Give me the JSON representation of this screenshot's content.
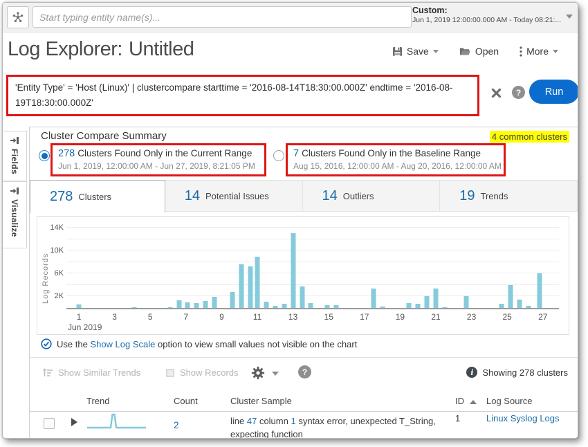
{
  "topbar": {
    "entity_placeholder": "Start typing entity name(s)...",
    "time_range_label": "Custom:",
    "time_range_value": "Jun 1, 2019 12:00:00.000 AM - Today 08:21:..."
  },
  "header": {
    "title_prefix": "Log Explorer:",
    "title_name": "Untitled",
    "save_label": "Save",
    "open_label": "Open",
    "more_label": "More"
  },
  "query": {
    "text": "'Entity Type' = 'Host (Linux)' | clustercompare starttime = '2016-08-14T18:30:00.000Z' endtime = '2016-08-19T18:30:00.000Z'",
    "run_label": "Run"
  },
  "sidebar": {
    "fields_label": "Fields",
    "visualize_label": "Visualize"
  },
  "summary": {
    "title": "Cluster Compare Summary",
    "common_clusters": "4 common clusters",
    "current": {
      "count": "278",
      "label": "Clusters Found Only in the Current Range",
      "range": "Jun 1, 2019, 12:00:00 AM - Jun 27, 2019, 8:21:05 PM",
      "selected": true
    },
    "baseline": {
      "count": "7",
      "label": "Clusters Found Only in the Baseline Range",
      "range": "Aug 15, 2016, 12:00:00 AM - Aug 20, 2016, 12:00:00 AM",
      "selected": false
    }
  },
  "tabs": [
    {
      "count": "278",
      "label": "Clusters",
      "active": true
    },
    {
      "count": "14",
      "label": "Potential Issues",
      "active": false
    },
    {
      "count": "14",
      "label": "Outliers",
      "active": false
    },
    {
      "count": "19",
      "label": "Trends",
      "active": false
    }
  ],
  "chart_data": {
    "type": "bar",
    "title": "",
    "ylabel": "Log Records",
    "xlabel": "Jun 2019",
    "ylim": [
      0,
      14500
    ],
    "x_range": [
      0.3,
      27.9
    ],
    "grid_step": 2000,
    "yticks": [
      {
        "value": 2000,
        "label": "2K"
      },
      {
        "value": 6000,
        "label": "6K"
      },
      {
        "value": 10000,
        "label": "10K"
      },
      {
        "value": 14000,
        "label": "14K"
      }
    ],
    "xticks": [
      1,
      3,
      5,
      7,
      9,
      11,
      13,
      15,
      17,
      19,
      21,
      23,
      25,
      27
    ],
    "points": [
      {
        "x": 1.0,
        "y": 600
      },
      {
        "x": 4.1,
        "y": 150
      },
      {
        "x": 6.1,
        "y": 100
      },
      {
        "x": 6.6,
        "y": 1300
      },
      {
        "x": 7.1,
        "y": 1000
      },
      {
        "x": 7.6,
        "y": 900
      },
      {
        "x": 8.1,
        "y": 1200
      },
      {
        "x": 8.6,
        "y": 1900
      },
      {
        "x": 9.6,
        "y": 2800
      },
      {
        "x": 10.1,
        "y": 7600
      },
      {
        "x": 10.6,
        "y": 7300
      },
      {
        "x": 11.0,
        "y": 9000
      },
      {
        "x": 11.5,
        "y": 1100
      },
      {
        "x": 12.0,
        "y": 400
      },
      {
        "x": 12.5,
        "y": 700
      },
      {
        "x": 13.0,
        "y": 13000
      },
      {
        "x": 13.5,
        "y": 3800
      },
      {
        "x": 14.0,
        "y": 800
      },
      {
        "x": 14.9,
        "y": 500
      },
      {
        "x": 15.4,
        "y": 500
      },
      {
        "x": 17.5,
        "y": 3400
      },
      {
        "x": 18.0,
        "y": 250
      },
      {
        "x": 19.5,
        "y": 900
      },
      {
        "x": 20.0,
        "y": 700
      },
      {
        "x": 20.5,
        "y": 2100
      },
      {
        "x": 21.0,
        "y": 3400
      },
      {
        "x": 21.5,
        "y": 150
      },
      {
        "x": 22.7,
        "y": 2000
      },
      {
        "x": 24.7,
        "y": 700
      },
      {
        "x": 25.2,
        "y": 4000
      },
      {
        "x": 25.7,
        "y": 1500
      },
      {
        "x": 26.2,
        "y": 400
      },
      {
        "x": 26.8,
        "y": 6000
      }
    ]
  },
  "note": {
    "prefix": "Use the ",
    "link": "Show Log Scale",
    "suffix": " option to view small values not visible on the chart"
  },
  "toolbar": {
    "similar_label": "Show Similar Trends",
    "records_label": "Show Records",
    "showing_label": "Showing 278 clusters"
  },
  "results": {
    "columns": {
      "trend": "Trend",
      "count": "Count",
      "sample": "Cluster Sample",
      "id": "ID",
      "source": "Log Source"
    },
    "row": {
      "count": "2",
      "sample_seg1": "line ",
      "sample_num1": "47",
      "sample_seg2": " column ",
      "sample_num2": "1",
      "sample_seg3": " syntax error, unexpected T_String,",
      "sample_line2": "expecting function",
      "id": "1",
      "source": "Linux Syslog Logs"
    }
  },
  "colors": {
    "accent_blue": "#0b6cce",
    "link_blue": "#1b6ca8",
    "bar_fill": "#85cbdc",
    "annotation_red": "#e01414",
    "highlight_yellow": "#ffff00"
  }
}
